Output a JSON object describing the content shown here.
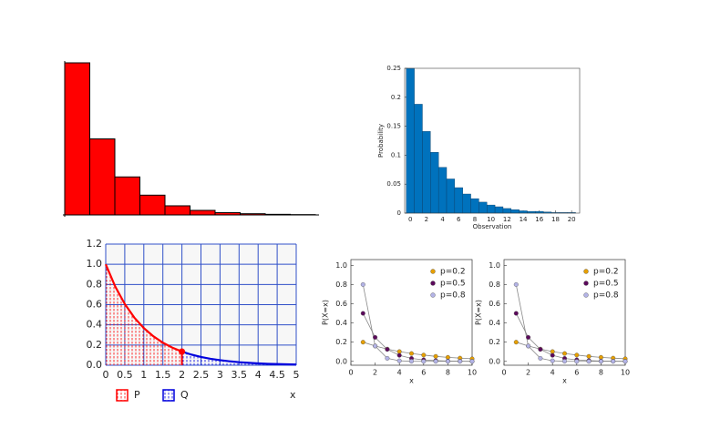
{
  "chart_data": [
    {
      "type": "bar",
      "color": "#ff0000",
      "values": [
        1,
        0.5,
        0.25,
        0.13,
        0.06,
        0.03,
        0.015,
        0.008,
        0.004,
        0.002
      ],
      "ylim": [
        0,
        1
      ]
    },
    {
      "type": "bar",
      "color": "#0072bd",
      "ylabel": "Probability",
      "xlabel": "Observation",
      "x": [
        0,
        1,
        2,
        3,
        4,
        5,
        6,
        7,
        8,
        9,
        10,
        11,
        12,
        13,
        14,
        15,
        16,
        17,
        18,
        19,
        20
      ],
      "values": [
        0.25,
        0.188,
        0.141,
        0.105,
        0.079,
        0.059,
        0.044,
        0.033,
        0.025,
        0.019,
        0.014,
        0.011,
        0.008,
        0.006,
        0.004,
        0.003,
        0.003,
        0.002,
        0.001,
        0.001,
        0.001
      ],
      "xlim": [
        -0.7,
        21
      ],
      "xticks": [
        0,
        2,
        4,
        6,
        8,
        10,
        12,
        14,
        16,
        18,
        20
      ],
      "ylim": [
        0,
        0.25
      ],
      "yticks": [
        0,
        0.05,
        0.1,
        0.15,
        0.2,
        0.25
      ]
    },
    {
      "type": "line",
      "xlabel": "x",
      "grid": true,
      "series": [
        {
          "name": "P",
          "color": "#ff0000",
          "x": [
            0,
            0.25,
            0.5,
            0.75,
            1,
            1.25,
            1.5,
            1.75,
            2
          ],
          "values": [
            1,
            0.779,
            0.607,
            0.472,
            0.368,
            0.287,
            0.223,
            0.174,
            0.135
          ]
        },
        {
          "name": "Q",
          "color": "#0000dd",
          "x": [
            2,
            2.25,
            2.5,
            2.75,
            3,
            3.25,
            3.5,
            3.75,
            4,
            4.25,
            4.5,
            4.75,
            5
          ],
          "values": [
            0.135,
            0.105,
            0.082,
            0.064,
            0.05,
            0.039,
            0.03,
            0.024,
            0.018,
            0.014,
            0.011,
            0.009,
            0.007
          ]
        }
      ],
      "marker": {
        "x": 2,
        "y": 0.135
      },
      "xlim": [
        0,
        5
      ],
      "xticks": [
        0,
        0.5,
        1,
        1.5,
        2,
        2.5,
        3,
        3.5,
        4,
        4.5,
        5
      ],
      "ylim": [
        0,
        1.2
      ],
      "yticks": [
        {
          "value": 0,
          "label": "0.0"
        },
        0.2,
        0.4,
        0.6,
        0.8,
        {
          "value": 1,
          "label": "1.0"
        },
        1.2
      ]
    },
    {
      "type": "line",
      "xlabel": "x",
      "ylabel": "P(X=x)",
      "legend": "upper right",
      "x": [
        1,
        2,
        3,
        4,
        5,
        6,
        7,
        8,
        9,
        10
      ],
      "series": [
        {
          "name": "p=0.2",
          "color": "#e69f00",
          "values": [
            0.2,
            0.16,
            0.128,
            0.102,
            0.082,
            0.066,
            0.052,
            0.042,
            0.034,
            0.027
          ]
        },
        {
          "name": "p=0.5",
          "color": "#5b0a5b",
          "values": [
            0.5,
            0.25,
            0.125,
            0.063,
            0.031,
            0.016,
            0.008,
            0.004,
            0.002,
            0.001
          ]
        },
        {
          "name": "p=0.8",
          "color": "#b3b3e6",
          "values": [
            0.8,
            0.16,
            0.032,
            0.006,
            0.001,
            0,
            0,
            0,
            0,
            0
          ]
        }
      ],
      "xlim": [
        0,
        10
      ],
      "xticks": [
        0,
        2,
        4,
        6,
        8,
        10
      ],
      "ylim": [
        -0.04,
        1.06
      ],
      "yticks": [
        {
          "value": 0,
          "label": "0.0"
        },
        0.2,
        0.4,
        0.6,
        0.8,
        {
          "value": 1,
          "label": "1.0"
        }
      ]
    },
    {
      "type": "line",
      "xlabel": "x",
      "ylabel": "P(X=x)",
      "legend": "upper right",
      "x": [
        1,
        2,
        3,
        4,
        5,
        6,
        7,
        8,
        9,
        10
      ],
      "series": [
        {
          "name": "p=0.2",
          "color": "#e69f00",
          "values": [
            0.2,
            0.16,
            0.128,
            0.102,
            0.082,
            0.066,
            0.052,
            0.042,
            0.034,
            0.027
          ]
        },
        {
          "name": "p=0.5",
          "color": "#5b0a5b",
          "values": [
            0.5,
            0.25,
            0.125,
            0.063,
            0.031,
            0.016,
            0.008,
            0.004,
            0.002,
            0.001
          ]
        },
        {
          "name": "p=0.8",
          "color": "#b3b3e6",
          "values": [
            0.8,
            0.16,
            0.032,
            0.006,
            0.001,
            0,
            0,
            0,
            0,
            0
          ]
        }
      ],
      "xlim": [
        0,
        10
      ],
      "xticks": [
        0,
        2,
        4,
        6,
        8,
        10
      ],
      "ylim": [
        -0.04,
        1.06
      ],
      "yticks": [
        {
          "value": 0,
          "label": "0.0"
        },
        0.2,
        0.4,
        0.6,
        0.8,
        {
          "value": 1,
          "label": "1.0"
        }
      ]
    }
  ]
}
